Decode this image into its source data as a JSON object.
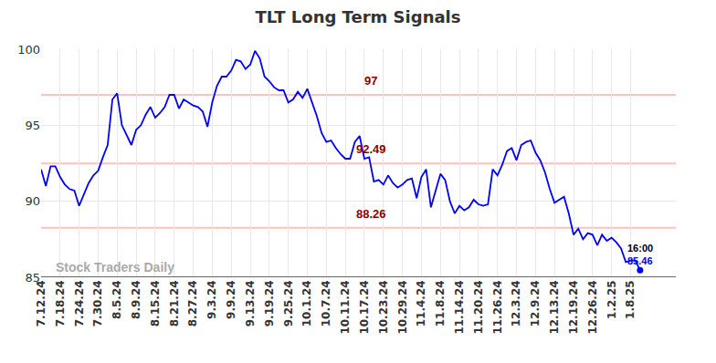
{
  "chart_data": {
    "type": "line",
    "title": "TLT Long Term Signals",
    "categories": [
      "7.12.24",
      null,
      null,
      null,
      "7.18.24",
      null,
      null,
      null,
      "7.24.24",
      null,
      null,
      null,
      "7.30.24",
      null,
      null,
      null,
      "8.5.24",
      null,
      null,
      null,
      "8.9.24",
      null,
      null,
      null,
      "8.15.24",
      null,
      null,
      null,
      "8.21.24",
      null,
      null,
      null,
      "8.27.24",
      null,
      null,
      null,
      "9.3.24",
      null,
      null,
      null,
      "9.9.24",
      null,
      null,
      null,
      "9.13.24",
      null,
      null,
      null,
      "9.19.24",
      null,
      null,
      null,
      "9.25.24",
      null,
      null,
      null,
      "10.1.24",
      null,
      null,
      null,
      "10.7.24",
      null,
      null,
      null,
      "10.11.24",
      null,
      null,
      null,
      "10.17.24",
      null,
      null,
      null,
      "10.23.24",
      null,
      null,
      null,
      "10.29.24",
      null,
      null,
      null,
      "11.4.24",
      null,
      null,
      null,
      "11.8.24",
      null,
      null,
      null,
      "11.14.24",
      null,
      null,
      null,
      "11.20.24",
      null,
      null,
      null,
      "11.26.24",
      null,
      null,
      null,
      "12.3.24",
      null,
      null,
      null,
      "12.9.24",
      null,
      null,
      null,
      "12.13.24",
      null,
      null,
      null,
      "12.19.24",
      null,
      null,
      null,
      "12.26.24",
      null,
      null,
      null,
      "1.2.25",
      null,
      null,
      null,
      "1.8.25",
      null,
      null
    ],
    "values": [
      92.1,
      91.0,
      92.3,
      92.3,
      91.6,
      91.1,
      90.8,
      90.7,
      89.7,
      90.5,
      91.2,
      91.7,
      92.0,
      92.9,
      93.7,
      96.7,
      97.1,
      95.0,
      94.3,
      93.7,
      94.7,
      95.0,
      95.7,
      96.2,
      95.5,
      95.8,
      96.2,
      97.0,
      97.0,
      96.1,
      96.7,
      96.5,
      96.3,
      96.2,
      95.9,
      94.9,
      96.5,
      97.6,
      98.2,
      98.2,
      98.6,
      99.3,
      99.2,
      98.7,
      99.0,
      99.9,
      99.4,
      98.2,
      97.9,
      97.5,
      97.3,
      97.3,
      96.5,
      96.7,
      97.2,
      96.8,
      97.4,
      96.5,
      95.6,
      94.5,
      93.9,
      94.0,
      93.5,
      93.1,
      92.8,
      92.8,
      93.9,
      94.3,
      92.8,
      92.9,
      91.3,
      91.4,
      91.1,
      91.7,
      91.2,
      90.9,
      91.1,
      91.4,
      91.5,
      90.2,
      91.6,
      92.1,
      89.6,
      90.7,
      91.8,
      91.4,
      90.0,
      89.2,
      89.7,
      89.4,
      89.6,
      90.1,
      89.8,
      89.7,
      89.8,
      92.1,
      91.7,
      92.4,
      93.3,
      93.5,
      92.7,
      93.7,
      93.9,
      94.0,
      93.2,
      92.7,
      91.9,
      90.8,
      89.9,
      90.1,
      90.3,
      89.2,
      87.8,
      88.2,
      87.5,
      87.9,
      87.8,
      87.1,
      87.8,
      87.4,
      87.6,
      87.3,
      86.9,
      86.0,
      86.1,
      86.1,
      85.46
    ],
    "color": "#0000ff",
    "ylim": [
      85,
      100
    ],
    "yticks": [
      85,
      90,
      95,
      100
    ],
    "grid": true,
    "reference_lines": [
      97,
      92.49,
      88.26
    ],
    "watermark": "Stock Traders Daily",
    "last_label": {
      "time": "16:00",
      "value": 85.46
    }
  }
}
